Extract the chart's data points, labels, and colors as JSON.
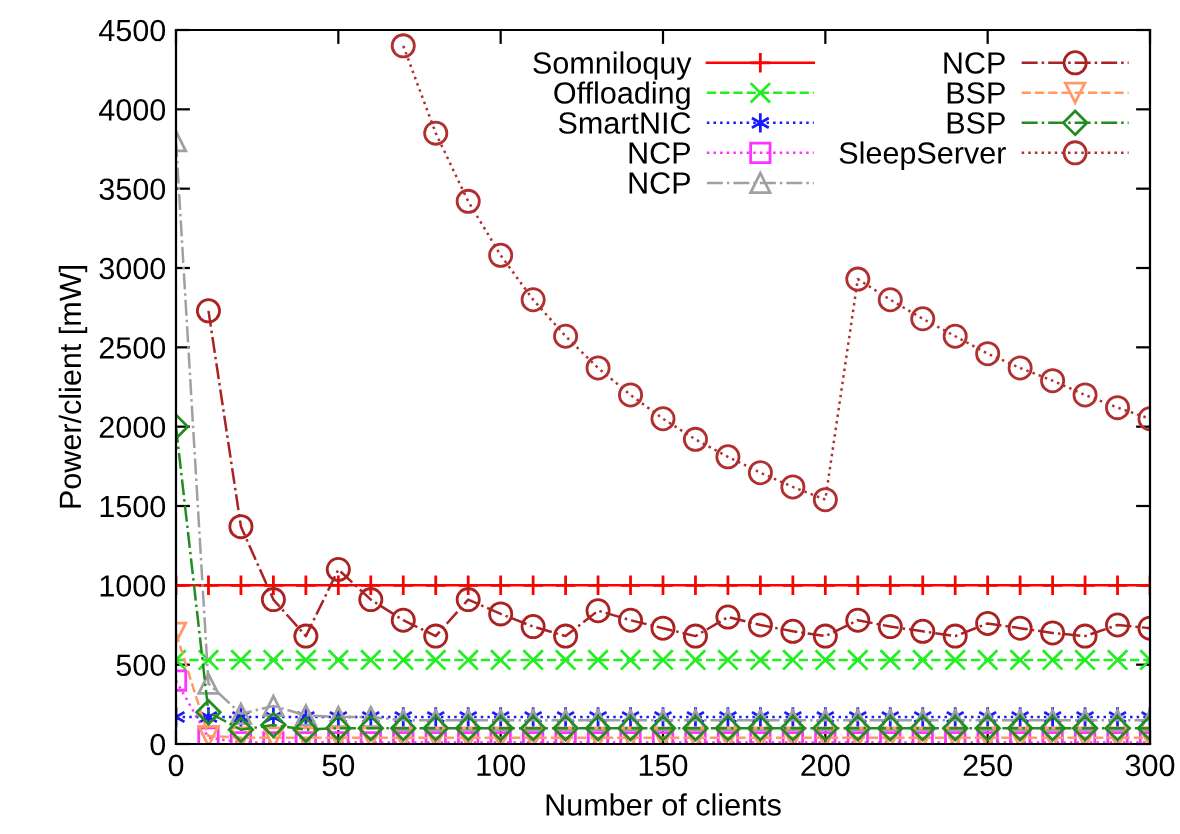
{
  "chart_data": {
    "type": "line",
    "xlabel": "Number of clients",
    "ylabel": "Power/client [mW]",
    "x": [
      0,
      10,
      20,
      30,
      40,
      50,
      60,
      70,
      80,
      90,
      100,
      110,
      120,
      130,
      140,
      150,
      160,
      170,
      180,
      190,
      200,
      210,
      220,
      230,
      240,
      250,
      260,
      270,
      280,
      290,
      300
    ],
    "xlim": [
      0,
      300
    ],
    "xticks": [
      0,
      50,
      100,
      150,
      200,
      250,
      300
    ],
    "ylim": [
      0,
      4500
    ],
    "yticks": [
      0,
      500,
      1000,
      1500,
      2000,
      2500,
      3000,
      3500,
      4000,
      4500
    ],
    "grid": false,
    "legend": "top right",
    "series": [
      {
        "name": "Somniloquy",
        "color": "#ff0000",
        "marker": "plus",
        "line_style": "solid",
        "values": [
          1000,
          1000,
          1000,
          1000,
          1000,
          1000,
          1000,
          1000,
          1000,
          1000,
          1000,
          1000,
          1000,
          1000,
          1000,
          1000,
          1000,
          1000,
          1000,
          1000,
          1000,
          1000,
          1000,
          1000,
          1000,
          1000,
          1000,
          1000,
          1000,
          1000,
          1000
        ]
      },
      {
        "name": "Offloading",
        "color": "#22ee22",
        "marker": "cross",
        "line_style": "dashed",
        "values": [
          530,
          530,
          530,
          530,
          530,
          530,
          530,
          530,
          530,
          530,
          530,
          530,
          530,
          530,
          530,
          530,
          530,
          530,
          530,
          530,
          530,
          530,
          530,
          530,
          530,
          530,
          530,
          530,
          530,
          530,
          530
        ]
      },
      {
        "name": "SmartNIC",
        "color": "#1a1aff",
        "marker": "cross",
        "line_style": "dotted",
        "values": [
          170,
          170,
          170,
          170,
          170,
          170,
          170,
          170,
          170,
          170,
          170,
          170,
          170,
          170,
          170,
          170,
          170,
          170,
          170,
          170,
          170,
          170,
          170,
          170,
          170,
          170,
          170,
          170,
          170,
          170,
          170
        ]
      },
      {
        "name": "NCP",
        "color": "#ff33ff",
        "marker": "square",
        "line_style": "dotted",
        "values": [
          400,
          40,
          10,
          10,
          10,
          10,
          10,
          10,
          10,
          10,
          10,
          10,
          10,
          10,
          10,
          10,
          10,
          10,
          10,
          10,
          10,
          10,
          10,
          10,
          10,
          10,
          10,
          10,
          10,
          10,
          10
        ]
      },
      {
        "name": "NCP",
        "color": "#a0a0a0",
        "marker": "triangle",
        "line_style": "dashdot",
        "values": [
          3800,
          380,
          190,
          240,
          180,
          170,
          170,
          150,
          150,
          150,
          150,
          150,
          150,
          150,
          150,
          150,
          150,
          150,
          150,
          150,
          150,
          150,
          150,
          150,
          150,
          150,
          150,
          150,
          150,
          150,
          150
        ]
      },
      {
        "name": "NCP",
        "color": "#aa2222",
        "marker": "circle",
        "line_style": "dashdot",
        "values": [
          null,
          2730,
          1370,
          910,
          680,
          1100,
          910,
          780,
          680,
          910,
          820,
          740,
          680,
          840,
          780,
          730,
          680,
          800,
          750,
          710,
          680,
          780,
          740,
          710,
          680,
          760,
          730,
          700,
          680,
          750,
          730
        ]
      },
      {
        "name": "BSP",
        "color": "#ff9966",
        "marker": "triangle_down",
        "line_style": "dashed",
        "values": [
          700,
          50,
          40,
          40,
          40,
          40,
          40,
          40,
          40,
          40,
          40,
          40,
          40,
          40,
          40,
          40,
          40,
          40,
          40,
          40,
          40,
          40,
          40,
          40,
          40,
          40,
          40,
          40,
          40,
          40,
          40
        ]
      },
      {
        "name": "BSP",
        "color": "#228b22",
        "marker": "diamond",
        "line_style": "dashdot",
        "values": [
          2000,
          200,
          90,
          120,
          90,
          100,
          100,
          100,
          100,
          100,
          100,
          100,
          100,
          100,
          100,
          100,
          100,
          100,
          100,
          100,
          100,
          100,
          100,
          100,
          100,
          100,
          100,
          100,
          100,
          100,
          100
        ]
      },
      {
        "name": "SleepServer",
        "color": "#b03030",
        "marker": "circle",
        "line_style": "dotted",
        "values": [
          null,
          null,
          null,
          null,
          null,
          null,
          null,
          4400,
          3850,
          3420,
          3080,
          2800,
          2570,
          2370,
          2200,
          2050,
          1920,
          1810,
          1710,
          1620,
          1540,
          2930,
          2800,
          2680,
          2570,
          2460,
          2370,
          2290,
          2200,
          2120,
          2050
        ]
      }
    ]
  }
}
